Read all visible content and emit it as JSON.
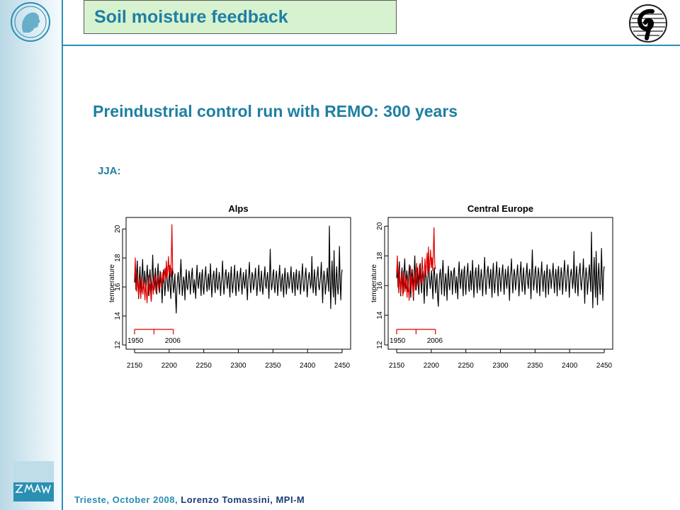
{
  "header": {
    "title": "Soil moisture feedback"
  },
  "main": {
    "subtitle": "Preindustrial control run with REMO: 300 years",
    "season_label": "JJA:"
  },
  "footer": {
    "location_date": "Trieste, October 2008,",
    "author": "Lorenzo Tomassini,  MPI-M"
  },
  "logos": {
    "left": "max-planck-logo-icon",
    "right": "institute-logo-icon",
    "bottom": "zmaw-logo-icon"
  },
  "colors": {
    "accent": "#1f7fa3",
    "title_box_bg": "#d6f2cf",
    "control_series": "#000000",
    "observed_series": "#e00000",
    "bracket": "#e00000"
  },
  "chart_data": [
    {
      "type": "line",
      "title": "Alps",
      "xlabel": "",
      "ylabel": "temperature",
      "xlim": [
        2150,
        2450
      ],
      "ylim": [
        12,
        20.5
      ],
      "x_ticks": [
        "2150",
        "2200",
        "2250",
        "2300",
        "2350",
        "2400",
        "2450"
      ],
      "y_ticks": [
        "12",
        "14",
        "16",
        "18",
        "20"
      ],
      "bracket_labels": [
        "1950",
        "2006"
      ],
      "grid": false,
      "series": [
        {
          "color": "black",
          "x_start": 2150,
          "x_end": 2450,
          "values": [
            16.3,
            17.2,
            15.8,
            16.9,
            17.8,
            16.4,
            15.2,
            16.6,
            17.4,
            16.1,
            15.6,
            16.8,
            17.9,
            16.2,
            15.9,
            17.1,
            16.4,
            15.7,
            16.9,
            17.5,
            16.0,
            15.4,
            16.7,
            17.2,
            16.3,
            15.1,
            16.8,
            18.2,
            16.5,
            15.8,
            16.6,
            17.3,
            16.0,
            15.5,
            16.9,
            17.6,
            16.2,
            15.6,
            16.4,
            17.0,
            16.1,
            14.9,
            16.3,
            17.2,
            16.6,
            15.4,
            16.0,
            16.8,
            17.4,
            16.2,
            15.7,
            16.5,
            17.1,
            15.9,
            15.2,
            16.7,
            17.3,
            16.4,
            15.6,
            16.1,
            16.9,
            15.3,
            14.2,
            15.8,
            16.6,
            17.0,
            16.2,
            15.5,
            16.8,
            17.9,
            16.6,
            15.4,
            16.0,
            16.7,
            16.3,
            15.1,
            16.5,
            17.2,
            16.0,
            15.8,
            16.4,
            17.1,
            16.6,
            15.5,
            16.2,
            16.9,
            17.3,
            16.1,
            15.6,
            16.5,
            16.0,
            15.2,
            16.7,
            17.5,
            16.3,
            15.9,
            16.6,
            17.0,
            16.2,
            15.4,
            16.8,
            17.2,
            16.0,
            15.5,
            16.3,
            16.9,
            17.4,
            16.1,
            15.7,
            16.5,
            16.9,
            15.8,
            16.3,
            17.6,
            16.4,
            15.3,
            16.1,
            16.8,
            17.1,
            16.2,
            15.6,
            16.6,
            17.3,
            16.0,
            15.8,
            16.4,
            17.0,
            16.5,
            15.4,
            16.2,
            16.7,
            17.8,
            16.3,
            15.5,
            16.1,
            16.9,
            17.2,
            16.4,
            15.9,
            16.6,
            17.0,
            16.1,
            15.3,
            16.7,
            17.4,
            16.2,
            15.6,
            16.3,
            16.8,
            17.5,
            16.0,
            15.4,
            16.5,
            17.1,
            16.6,
            15.7,
            16.2,
            16.9,
            17.3,
            16.1,
            15.5,
            16.4,
            17.0,
            16.3,
            15.9,
            16.6,
            17.2,
            16.0,
            15.1,
            16.5,
            16.9,
            17.7,
            16.2,
            15.6,
            16.3,
            17.0,
            16.8,
            15.8,
            16.1,
            16.7,
            17.3,
            16.4,
            15.4,
            16.0,
            16.9,
            17.5,
            16.2,
            15.7,
            16.5,
            17.1,
            16.0,
            15.5,
            16.3,
            16.8,
            17.4,
            16.1,
            15.9,
            16.6,
            17.0,
            16.3,
            15.2,
            16.7,
            18.6,
            16.5,
            15.8,
            16.2,
            16.9,
            17.2,
            16.0,
            15.6,
            16.4,
            17.1,
            16.6,
            15.4,
            16.1,
            16.8,
            17.5,
            16.2,
            15.7,
            16.5,
            16.9,
            16.0,
            15.3,
            16.7,
            17.3,
            16.4,
            15.5,
            16.2,
            17.0,
            16.6,
            15.9,
            16.3,
            16.8,
            17.4,
            16.1,
            15.6,
            16.5,
            17.0,
            16.2,
            15.4,
            16.8,
            17.2,
            16.0,
            15.8,
            16.4,
            17.1,
            16.6,
            15.5,
            16.2,
            16.9,
            17.6,
            16.3,
            15.7,
            16.0,
            16.8,
            17.3,
            16.4,
            15.3,
            16.1,
            16.7,
            17.0,
            16.5,
            15.9,
            16.3,
            18.1,
            16.2,
            15.6,
            16.6,
            17.2,
            16.0,
            15.4,
            16.5,
            16.9,
            17.4,
            16.1,
            15.8,
            16.3,
            16.8,
            17.7,
            16.2,
            14.9,
            16.4,
            17.1,
            16.6,
            15.5,
            16.0,
            16.7,
            17.3,
            16.3,
            15.7,
            20.2,
            16.9,
            14.5,
            16.4,
            17.8,
            16.2,
            15.3,
            18.5,
            16.1,
            14.8,
            16.7,
            17.4,
            16.0,
            15.5,
            16.5,
            18.8,
            16.3,
            15.1,
            16.8,
            17.2
          ]
        },
        {
          "color": "red",
          "x_start": 2150,
          "x_end": 2206,
          "values": [
            16.6,
            18.0,
            16.2,
            15.7,
            16.9,
            16.0,
            15.3,
            16.5,
            15.8,
            15.2,
            16.7,
            16.1,
            15.5,
            16.4,
            15.9,
            15.1,
            16.3,
            15.6,
            14.9,
            16.0,
            16.8,
            15.4,
            16.2,
            15.7,
            15.0,
            16.6,
            16.1,
            15.5,
            16.4,
            16.9,
            16.0,
            15.6,
            16.3,
            16.7,
            16.2,
            15.8,
            16.5,
            17.1,
            16.4,
            15.9,
            16.6,
            17.0,
            16.3,
            16.8,
            17.3,
            16.5,
            17.8,
            16.6,
            17.2,
            18.1,
            16.9,
            17.5,
            16.7,
            17.9,
            20.3,
            17.2,
            16.9
          ]
        }
      ]
    },
    {
      "type": "line",
      "title": "Central Europe",
      "xlabel": "",
      "ylabel": "temperature",
      "xlim": [
        2150,
        2450
      ],
      "ylim": [
        12,
        20.3
      ],
      "x_ticks": [
        "2150",
        "2200",
        "2250",
        "2300",
        "2350",
        "2400",
        "2450"
      ],
      "y_ticks": [
        "12",
        "14",
        "16",
        "18",
        "20"
      ],
      "bracket_labels": [
        "1950",
        "2006"
      ],
      "grid": false,
      "series": [
        {
          "color": "black",
          "x_start": 2150,
          "x_end": 2450,
          "values": [
            16.5,
            17.3,
            15.9,
            16.8,
            17.6,
            16.2,
            15.3,
            16.7,
            17.2,
            16.0,
            15.5,
            16.9,
            17.8,
            16.3,
            15.8,
            17.0,
            16.5,
            15.6,
            16.8,
            17.4,
            16.1,
            15.2,
            16.6,
            17.1,
            16.4,
            15.0,
            16.9,
            18.0,
            16.3,
            15.7,
            16.5,
            17.2,
            16.1,
            15.4,
            16.8,
            17.5,
            16.3,
            15.5,
            16.5,
            17.0,
            16.2,
            14.8,
            16.4,
            17.3,
            16.6,
            15.3,
            16.1,
            16.9,
            17.5,
            16.3,
            15.8,
            16.4,
            17.0,
            16.0,
            15.1,
            16.8,
            17.2,
            16.5,
            15.5,
            16.2,
            16.8,
            15.2,
            14.6,
            15.9,
            16.7,
            17.1,
            16.3,
            15.4,
            16.9,
            17.7,
            16.5,
            15.3,
            16.1,
            16.8,
            16.2,
            15.0,
            16.6,
            17.3,
            16.1,
            15.7,
            16.5,
            17.0,
            16.7,
            15.4,
            16.3,
            17.0,
            17.2,
            16.0,
            15.5,
            16.6,
            16.1,
            15.1,
            16.8,
            17.6,
            16.4,
            15.8,
            16.7,
            17.1,
            16.1,
            15.3,
            16.9,
            17.3,
            16.1,
            15.4,
            16.4,
            17.0,
            17.5,
            16.0,
            15.6,
            16.6,
            17.0,
            15.7,
            16.4,
            17.7,
            16.5,
            15.2,
            16.2,
            16.9,
            17.2,
            16.1,
            15.5,
            16.7,
            17.4,
            16.1,
            15.7,
            16.5,
            17.1,
            16.4,
            15.3,
            16.3,
            16.8,
            17.9,
            16.2,
            15.4,
            16.2,
            17.0,
            17.3,
            16.5,
            15.8,
            16.5,
            17.1,
            16.2,
            15.2,
            16.8,
            17.5,
            16.1,
            15.5,
            16.4,
            16.9,
            17.6,
            16.1,
            15.3,
            16.6,
            17.2,
            16.5,
            15.6,
            16.3,
            17.0,
            17.4,
            16.2,
            15.4,
            16.5,
            17.1,
            16.2,
            15.8,
            16.7,
            17.3,
            16.1,
            15.0,
            16.6,
            17.0,
            17.8,
            16.3,
            15.5,
            16.4,
            17.1,
            16.7,
            15.7,
            16.2,
            16.8,
            17.4,
            16.5,
            15.3,
            16.1,
            17.0,
            17.6,
            16.3,
            15.6,
            16.6,
            17.2,
            16.1,
            15.4,
            16.4,
            16.9,
            17.5,
            16.2,
            15.8,
            16.7,
            17.1,
            16.4,
            15.1,
            16.8,
            18.4,
            16.6,
            15.7,
            16.3,
            17.0,
            17.3,
            16.1,
            15.5,
            16.5,
            17.2,
            16.7,
            15.3,
            16.2,
            16.9,
            17.6,
            16.3,
            15.6,
            16.6,
            17.0,
            16.1,
            15.2,
            16.8,
            17.4,
            16.5,
            15.4,
            16.3,
            17.1,
            16.7,
            15.8,
            16.4,
            16.9,
            17.5,
            16.2,
            15.5,
            16.6,
            17.1,
            16.3,
            15.3,
            16.9,
            17.3,
            16.1,
            15.7,
            16.5,
            17.2,
            16.7,
            15.4,
            16.3,
            17.0,
            17.7,
            16.4,
            15.6,
            16.1,
            16.9,
            17.4,
            16.5,
            15.2,
            16.2,
            16.8,
            17.1,
            16.6,
            15.8,
            16.4,
            18.3,
            16.3,
            15.5,
            16.7,
            17.3,
            16.1,
            15.3,
            16.6,
            17.0,
            17.5,
            16.2,
            15.7,
            16.4,
            16.9,
            17.8,
            16.3,
            14.8,
            16.5,
            17.2,
            16.7,
            15.4,
            16.1,
            16.8,
            17.4,
            16.4,
            15.6,
            19.6,
            17.0,
            14.5,
            16.5,
            17.9,
            16.3,
            15.2,
            18.3,
            16.2,
            14.7,
            16.8,
            17.5,
            16.1,
            15.4,
            16.6,
            18.5,
            16.4,
            15.0,
            16.9,
            17.3
          ]
        },
        {
          "color": "red",
          "x_start": 2150,
          "x_end": 2206,
          "values": [
            16.8,
            18.0,
            16.4,
            15.5,
            17.1,
            16.2,
            15.4,
            16.8,
            16.0,
            15.3,
            17.0,
            16.3,
            15.6,
            16.7,
            16.1,
            15.2,
            16.5,
            15.8,
            15.0,
            16.3,
            17.3,
            15.6,
            16.5,
            16.0,
            15.2,
            17.0,
            16.4,
            15.7,
            16.8,
            17.5,
            16.2,
            15.9,
            16.7,
            17.4,
            16.5,
            16.1,
            16.9,
            17.9,
            16.7,
            16.2,
            17.0,
            17.8,
            16.6,
            17.4,
            18.2,
            16.8,
            18.6,
            16.9,
            17.6,
            18.4,
            17.2,
            17.9,
            17.0,
            18.3,
            19.9,
            17.5,
            17.1
          ]
        }
      ]
    }
  ]
}
